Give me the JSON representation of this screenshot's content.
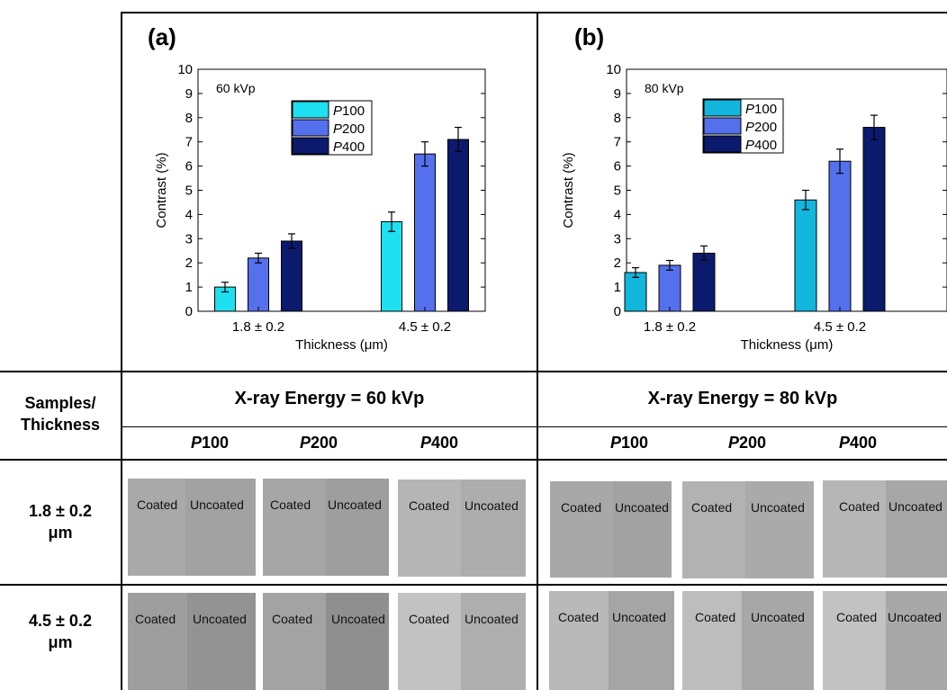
{
  "chart_data": [
    {
      "type": "bar",
      "panel_label": "(a)",
      "annotation": "60 kVp",
      "categories": [
        "1.8 ± 0.2",
        "4.5 ± 0.2"
      ],
      "xlabel": "Thickness (μm)",
      "ylabel": "Contrast (%)",
      "ylim": [
        0,
        10
      ],
      "yticks": [
        "0",
        "1",
        "2",
        "3",
        "4",
        "5",
        "6",
        "7",
        "8",
        "9",
        "10"
      ],
      "legend_position": "top-center",
      "series": [
        {
          "name": "P100",
          "name_italic": "P",
          "name_rest": "100",
          "color": "#1fe0f0",
          "values": [
            1.0,
            3.7
          ],
          "errors": [
            0.2,
            0.4
          ]
        },
        {
          "name": "P200",
          "name_italic": "P",
          "name_rest": "200",
          "color": "#5470ec",
          "values": [
            2.2,
            6.5
          ],
          "errors": [
            0.2,
            0.5
          ]
        },
        {
          "name": "P400",
          "name_italic": "P",
          "name_rest": "400",
          "color": "#0c1a6e",
          "values": [
            2.9,
            7.1
          ],
          "errors": [
            0.3,
            0.5
          ]
        }
      ]
    },
    {
      "type": "bar",
      "panel_label": "(b)",
      "annotation": "80 kVp",
      "categories": [
        "1.8 ± 0.2",
        "4.5 ± 0.2"
      ],
      "xlabel": "Thickness (μm)",
      "ylabel": "Contrast (%)",
      "ylim": [
        0,
        10
      ],
      "yticks": [
        "0",
        "1",
        "2",
        "3",
        "4",
        "5",
        "6",
        "7",
        "8",
        "9",
        "10"
      ],
      "legend_position": "top-center",
      "series": [
        {
          "name": "P100",
          "name_italic": "P",
          "name_rest": "100",
          "color": "#12b6dc",
          "values": [
            1.6,
            4.6
          ],
          "errors": [
            0.2,
            0.4
          ]
        },
        {
          "name": "P200",
          "name_italic": "P",
          "name_rest": "200",
          "color": "#5470ec",
          "values": [
            1.9,
            6.2
          ],
          "errors": [
            0.2,
            0.5
          ]
        },
        {
          "name": "P400",
          "name_italic": "P",
          "name_rest": "400",
          "color": "#0c1a6e",
          "values": [
            2.4,
            7.6
          ],
          "errors": [
            0.3,
            0.5
          ]
        }
      ]
    }
  ],
  "table": {
    "corner_line1": "Samples/",
    "corner_line2": "Thickness",
    "energy_60": "X-ray Energy = 60 kVp",
    "energy_80": "X-ray Energy = 80 kVp",
    "columns_60": [
      {
        "italic": "P",
        "rest": "100"
      },
      {
        "italic": "P",
        "rest": "200"
      },
      {
        "italic": "P",
        "rest": "400"
      }
    ],
    "columns_80": [
      {
        "italic": "P",
        "rest": "100"
      },
      {
        "italic": "P",
        "rest": "200"
      },
      {
        "italic": "P",
        "rest": "400"
      }
    ],
    "rows": [
      {
        "line1": "1.8 ± 0.2",
        "line2": "μm"
      },
      {
        "line1": "4.5 ± 0.2",
        "line2": "μm"
      }
    ],
    "coated_label": "Coated",
    "uncoated_label": "Uncoated"
  }
}
